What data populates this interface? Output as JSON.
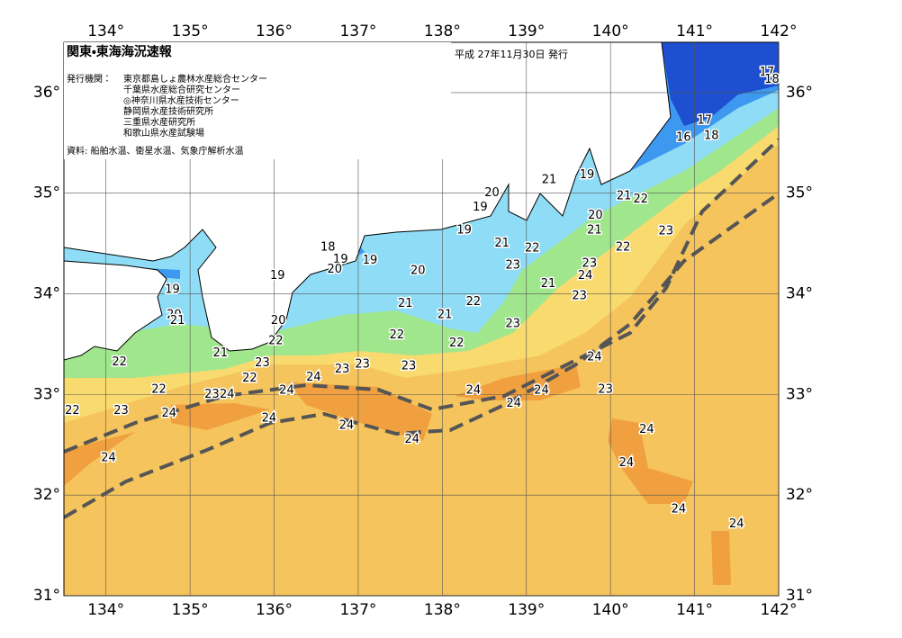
{
  "header": {
    "title": "関東・東海海況速報",
    "issue_date": "平成 27年11月30日 発行",
    "issuer_label": "発行機関：",
    "issuers": [
      "東京都島しょ農林水産総合センター",
      "千葉県水産総合研究センター",
      "◎神奈川県水産技術センター",
      "静岡県水産技術研究所",
      "三重県水産研究所",
      "和歌山県水産試験場"
    ],
    "source": "資料: 船舶水温、衛星水温、気象庁解析水温"
  },
  "map": {
    "xlim": [
      133.5,
      142
    ],
    "ylim": [
      31,
      36.5
    ],
    "xticks": [
      {
        "value": 134,
        "label": "134°"
      },
      {
        "value": 135,
        "label": "135°"
      },
      {
        "value": 136,
        "label": "136°"
      },
      {
        "value": 137,
        "label": "137°"
      },
      {
        "value": 138,
        "label": "138°"
      },
      {
        "value": 139,
        "label": "139°"
      },
      {
        "value": 140,
        "label": "140°"
      },
      {
        "value": 141,
        "label": "141°"
      },
      {
        "value": 142,
        "label": "142°"
      }
    ],
    "yticks": [
      {
        "value": 31,
        "label": "31°"
      },
      {
        "value": 32,
        "label": "32°"
      },
      {
        "value": 33,
        "label": "33°"
      },
      {
        "value": 34,
        "label": "34°"
      },
      {
        "value": 35,
        "label": "35°"
      },
      {
        "value": 36,
        "label": "36°"
      }
    ],
    "contour_labels": [
      {
        "value": 17,
        "lon": 141.86,
        "lat": 36.2
      },
      {
        "value": 18,
        "lon": 141.92,
        "lat": 36.13
      },
      {
        "value": 17,
        "lon": 141.12,
        "lat": 35.72
      },
      {
        "value": 18,
        "lon": 141.2,
        "lat": 35.57
      },
      {
        "value": 16,
        "lon": 140.87,
        "lat": 35.55
      },
      {
        "value": 19,
        "lon": 139.72,
        "lat": 35.18
      },
      {
        "value": 21,
        "lon": 139.27,
        "lat": 35.13
      },
      {
        "value": 21,
        "lon": 140.16,
        "lat": 34.97
      },
      {
        "value": 22,
        "lon": 140.36,
        "lat": 34.94
      },
      {
        "value": 20,
        "lon": 138.59,
        "lat": 35.0
      },
      {
        "value": 19,
        "lon": 138.45,
        "lat": 34.86
      },
      {
        "value": 19,
        "lon": 138.26,
        "lat": 34.63
      },
      {
        "value": 20,
        "lon": 139.82,
        "lat": 34.78
      },
      {
        "value": 21,
        "lon": 139.81,
        "lat": 34.63
      },
      {
        "value": 22,
        "lon": 140.15,
        "lat": 34.46
      },
      {
        "value": 23,
        "lon": 140.66,
        "lat": 34.62
      },
      {
        "value": 21,
        "lon": 138.71,
        "lat": 34.5
      },
      {
        "value": 22,
        "lon": 139.07,
        "lat": 34.45
      },
      {
        "value": 23,
        "lon": 138.84,
        "lat": 34.28
      },
      {
        "value": 18,
        "lon": 136.64,
        "lat": 34.46
      },
      {
        "value": 19,
        "lon": 136.79,
        "lat": 34.34
      },
      {
        "value": 20,
        "lon": 136.72,
        "lat": 34.24
      },
      {
        "value": 19,
        "lon": 137.14,
        "lat": 34.33
      },
      {
        "value": 20,
        "lon": 137.71,
        "lat": 34.23
      },
      {
        "value": 19,
        "lon": 136.04,
        "lat": 34.18
      },
      {
        "value": 19,
        "lon": 134.79,
        "lat": 34.04
      },
      {
        "value": 20,
        "lon": 134.81,
        "lat": 33.79
      },
      {
        "value": 21,
        "lon": 134.85,
        "lat": 33.73
      },
      {
        "value": 20,
        "lon": 136.05,
        "lat": 33.73
      },
      {
        "value": 21,
        "lon": 137.56,
        "lat": 33.9
      },
      {
        "value": 21,
        "lon": 138.03,
        "lat": 33.79
      },
      {
        "value": 22,
        "lon": 138.37,
        "lat": 33.92
      },
      {
        "value": 23,
        "lon": 138.84,
        "lat": 33.7
      },
      {
        "value": 23,
        "lon": 139.75,
        "lat": 34.3
      },
      {
        "value": 24,
        "lon": 139.7,
        "lat": 34.18
      },
      {
        "value": 21,
        "lon": 139.26,
        "lat": 34.1
      },
      {
        "value": 23,
        "lon": 139.63,
        "lat": 33.98
      },
      {
        "value": 22,
        "lon": 137.46,
        "lat": 33.59
      },
      {
        "value": 22,
        "lon": 138.17,
        "lat": 33.51
      },
      {
        "value": 22,
        "lon": 136.02,
        "lat": 33.53
      },
      {
        "value": 21,
        "lon": 135.36,
        "lat": 33.41
      },
      {
        "value": 22,
        "lon": 134.16,
        "lat": 33.32
      },
      {
        "value": 23,
        "lon": 135.86,
        "lat": 33.31
      },
      {
        "value": 24,
        "lon": 136.47,
        "lat": 33.17
      },
      {
        "value": 23,
        "lon": 136.81,
        "lat": 33.25
      },
      {
        "value": 23,
        "lon": 137.05,
        "lat": 33.3
      },
      {
        "value": 23,
        "lon": 137.6,
        "lat": 33.28
      },
      {
        "value": 24,
        "lon": 139.81,
        "lat": 33.37
      },
      {
        "value": 22,
        "lon": 135.71,
        "lat": 33.16
      },
      {
        "value": 22,
        "lon": 134.63,
        "lat": 33.05
      },
      {
        "value": 24,
        "lon": 136.15,
        "lat": 33.04
      },
      {
        "value": 23,
        "lon": 135.26,
        "lat": 33.0
      },
      {
        "value": 24,
        "lon": 135.44,
        "lat": 33.0
      },
      {
        "value": 24,
        "lon": 138.37,
        "lat": 33.04
      },
      {
        "value": 24,
        "lon": 139.18,
        "lat": 33.04
      },
      {
        "value": 23,
        "lon": 139.94,
        "lat": 33.05
      },
      {
        "value": 24,
        "lon": 138.85,
        "lat": 32.91
      },
      {
        "value": 22,
        "lon": 133.6,
        "lat": 32.84
      },
      {
        "value": 23,
        "lon": 134.18,
        "lat": 32.84
      },
      {
        "value": 24,
        "lon": 134.75,
        "lat": 32.81
      },
      {
        "value": 24,
        "lon": 135.94,
        "lat": 32.76
      },
      {
        "value": 24,
        "lon": 136.86,
        "lat": 32.69
      },
      {
        "value": 24,
        "lon": 137.64,
        "lat": 32.55
      },
      {
        "value": 24,
        "lon": 140.43,
        "lat": 32.65
      },
      {
        "value": 24,
        "lon": 134.03,
        "lat": 32.37
      },
      {
        "value": 24,
        "lon": 140.19,
        "lat": 32.32
      },
      {
        "value": 24,
        "lon": 140.81,
        "lat": 31.86
      },
      {
        "value": 24,
        "lon": 141.5,
        "lat": 31.71
      }
    ]
  }
}
